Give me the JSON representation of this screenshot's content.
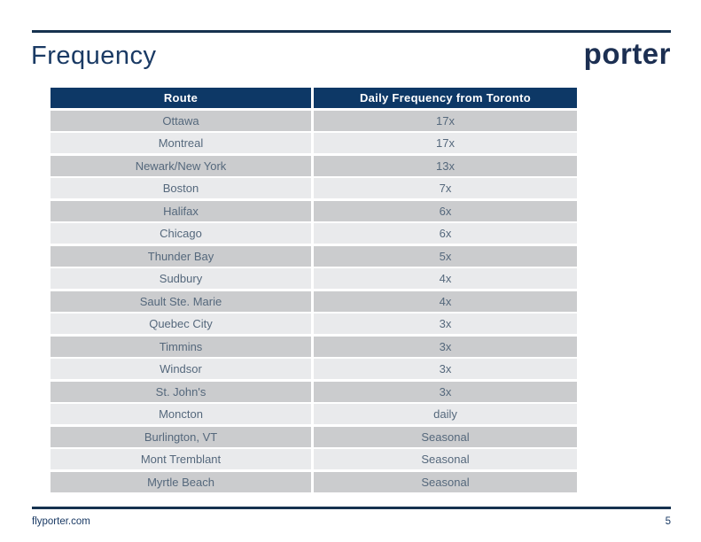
{
  "slide": {
    "title": "Frequency",
    "logo_text": "porter",
    "footer": {
      "website": "flyporter.com",
      "page_number": "5"
    }
  },
  "table": {
    "headers": [
      "Route",
      "Daily Frequency from Toronto"
    ],
    "rows": [
      {
        "route": "Ottawa",
        "frequency": "17x"
      },
      {
        "route": "Montreal",
        "frequency": "17x"
      },
      {
        "route": "Newark/New York",
        "frequency": "13x"
      },
      {
        "route": "Boston",
        "frequency": "7x"
      },
      {
        "route": "Halifax",
        "frequency": "6x"
      },
      {
        "route": "Chicago",
        "frequency": "6x"
      },
      {
        "route": "Thunder Bay",
        "frequency": "5x"
      },
      {
        "route": "Sudbury",
        "frequency": "4x"
      },
      {
        "route": "Sault Ste. Marie",
        "frequency": "4x"
      },
      {
        "route": "Quebec City",
        "frequency": "3x"
      },
      {
        "route": "Timmins",
        "frequency": "3x"
      },
      {
        "route": "Windsor",
        "frequency": "3x"
      },
      {
        "route": "St. John's",
        "frequency": "3x"
      },
      {
        "route": "Moncton",
        "frequency": "daily"
      },
      {
        "route": "Burlington, VT",
        "frequency": "Seasonal"
      },
      {
        "route": "Mont Tremblant",
        "frequency": "Seasonal"
      },
      {
        "route": "Myrtle Beach",
        "frequency": "Seasonal"
      }
    ]
  },
  "colors": {
    "brand_navy": "#0d3866",
    "rule_navy": "#16324f",
    "row_dark_gray": "#cbccce",
    "row_light_gray": "#e9eaec",
    "row_text": "#55687c"
  }
}
